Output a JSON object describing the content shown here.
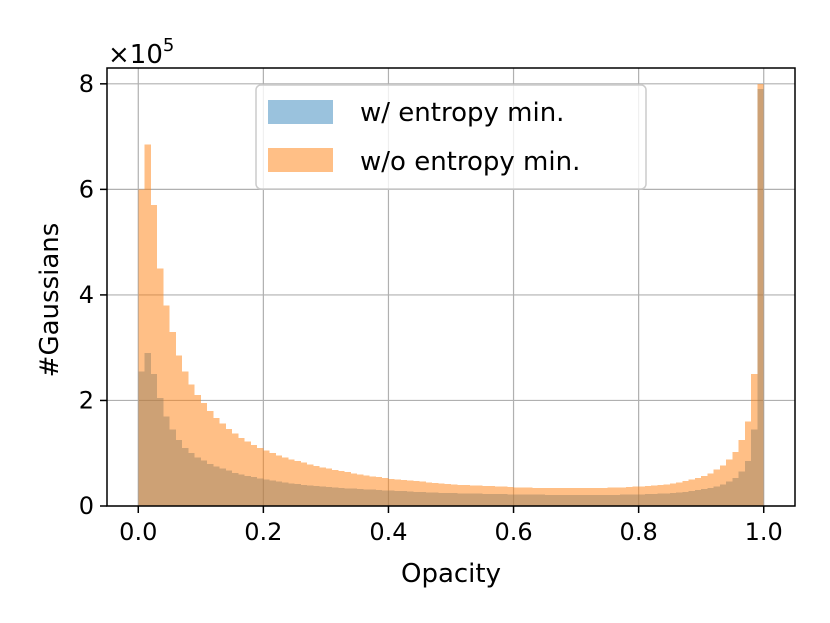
{
  "chart_data": {
    "type": "bar",
    "histogram": true,
    "title": "",
    "xlabel": "Opacity",
    "ylabel": "#Gaussians",
    "y_scale_label": "×10",
    "y_scale_exponent": "5",
    "y_scale_factor": 100000,
    "xlim": [
      -0.05,
      1.05
    ],
    "ylim": [
      0,
      8.3
    ],
    "xticks": [
      0.0,
      0.2,
      0.4,
      0.6,
      0.8,
      1.0
    ],
    "xtick_labels": [
      "0.0",
      "0.2",
      "0.4",
      "0.6",
      "0.8",
      "1.0"
    ],
    "yticks": [
      0,
      2,
      4,
      6,
      8
    ],
    "ytick_labels": [
      "0",
      "2",
      "4",
      "6",
      "8"
    ],
    "grid": true,
    "legend_position": "upper-center",
    "bin_width": 0.01,
    "bins_start": 0.0,
    "series": [
      {
        "name": "w/ entropy min.",
        "color": "#1f77b4",
        "alpha": 0.45,
        "values": [
          2.55,
          2.9,
          2.5,
          2.05,
          1.7,
          1.45,
          1.25,
          1.1,
          1.0,
          0.92,
          0.86,
          0.8,
          0.75,
          0.71,
          0.67,
          0.63,
          0.6,
          0.57,
          0.545,
          0.52,
          0.5,
          0.48,
          0.46,
          0.445,
          0.43,
          0.415,
          0.4,
          0.39,
          0.38,
          0.37,
          0.36,
          0.35,
          0.34,
          0.335,
          0.33,
          0.32,
          0.315,
          0.31,
          0.3,
          0.295,
          0.29,
          0.285,
          0.28,
          0.275,
          0.27,
          0.265,
          0.26,
          0.255,
          0.25,
          0.25,
          0.245,
          0.24,
          0.24,
          0.235,
          0.235,
          0.23,
          0.23,
          0.225,
          0.225,
          0.22,
          0.22,
          0.22,
          0.215,
          0.215,
          0.215,
          0.21,
          0.21,
          0.21,
          0.21,
          0.21,
          0.21,
          0.21,
          0.21,
          0.21,
          0.21,
          0.21,
          0.21,
          0.215,
          0.215,
          0.22,
          0.22,
          0.225,
          0.23,
          0.235,
          0.24,
          0.25,
          0.26,
          0.27,
          0.28,
          0.3,
          0.32,
          0.34,
          0.37,
          0.41,
          0.46,
          0.53,
          0.65,
          0.85,
          1.45,
          7.9
        ]
      },
      {
        "name": "w/o entropy min.",
        "color": "#ff7f0e",
        "alpha": 0.5,
        "values": [
          6.0,
          6.85,
          5.7,
          4.5,
          3.8,
          3.3,
          2.85,
          2.55,
          2.3,
          2.1,
          1.95,
          1.8,
          1.67,
          1.56,
          1.46,
          1.37,
          1.29,
          1.22,
          1.16,
          1.1,
          1.05,
          1.0,
          0.96,
          0.92,
          0.88,
          0.85,
          0.82,
          0.79,
          0.76,
          0.73,
          0.71,
          0.68,
          0.66,
          0.64,
          0.62,
          0.6,
          0.58,
          0.56,
          0.545,
          0.53,
          0.515,
          0.5,
          0.49,
          0.48,
          0.47,
          0.46,
          0.45,
          0.44,
          0.43,
          0.42,
          0.41,
          0.4,
          0.395,
          0.39,
          0.385,
          0.38,
          0.375,
          0.37,
          0.365,
          0.36,
          0.355,
          0.35,
          0.35,
          0.345,
          0.345,
          0.34,
          0.34,
          0.34,
          0.34,
          0.34,
          0.34,
          0.34,
          0.34,
          0.345,
          0.345,
          0.35,
          0.35,
          0.355,
          0.36,
          0.365,
          0.37,
          0.38,
          0.39,
          0.4,
          0.41,
          0.43,
          0.45,
          0.47,
          0.5,
          0.53,
          0.57,
          0.62,
          0.69,
          0.77,
          0.88,
          1.02,
          1.25,
          1.6,
          2.5,
          8.0
        ]
      }
    ]
  }
}
